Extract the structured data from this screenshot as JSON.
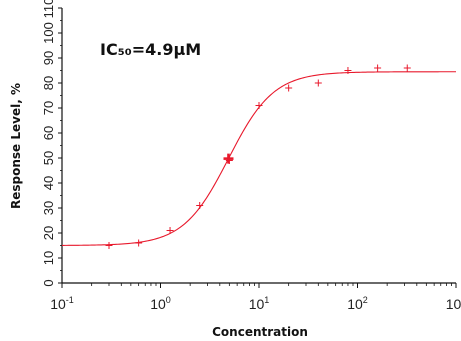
{
  "chart_data": {
    "type": "scatter",
    "annotation": "IC₅₀=4.9μM",
    "xlabel": "Concentration",
    "ylabel": "Response Level, %",
    "x_scale": "log",
    "xlim": [
      0.1,
      1000
    ],
    "ylim": [
      0,
      110
    ],
    "x_ticks": [
      {
        "value": 0.1,
        "base": "10",
        "exp": "-1"
      },
      {
        "value": 1,
        "base": "10",
        "exp": "0"
      },
      {
        "value": 10,
        "base": "10",
        "exp": "1"
      },
      {
        "value": 100,
        "base": "10",
        "exp": "2"
      },
      {
        "value": 1000,
        "base": "10",
        "exp": "3"
      }
    ],
    "y_ticks": [
      "0",
      "10",
      "20",
      "30",
      "40",
      "50",
      "60",
      "70",
      "80",
      "90",
      "100",
      "110"
    ],
    "grid": false,
    "series": [
      {
        "kind": "points",
        "color": "#e8192c",
        "points": [
          {
            "x": 0.3,
            "y": 15
          },
          {
            "x": 0.6,
            "y": 16
          },
          {
            "x": 1.25,
            "y": 21
          },
          {
            "x": 2.5,
            "y": 31
          },
          {
            "x": 5.0,
            "y": 49
          },
          {
            "x": 10,
            "y": 71
          },
          {
            "x": 20,
            "y": 78
          },
          {
            "x": 40,
            "y": 80
          },
          {
            "x": 80,
            "y": 85
          },
          {
            "x": 160,
            "y": 86
          },
          {
            "x": 320,
            "y": 86
          }
        ]
      },
      {
        "kind": "fit",
        "color": "#e8192c",
        "model": "four-parameter logistic",
        "bottom": 15,
        "top": 84.5,
        "ic50": 4.9,
        "hill": 1.9
      }
    ],
    "ic50_marker": {
      "x": 4.9,
      "y": 49.75,
      "color": "#e8192c"
    }
  }
}
